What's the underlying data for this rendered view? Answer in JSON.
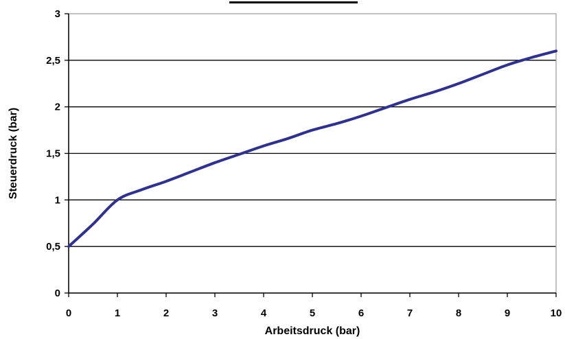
{
  "chart_data": {
    "type": "line",
    "title": "",
    "xlabel": "Arbeitsdruck (bar)",
    "ylabel": "Steuerdruck (bar)",
    "xlim": [
      0,
      10
    ],
    "ylim": [
      0,
      3
    ],
    "x_ticks": [
      "0",
      "1",
      "2",
      "3",
      "4",
      "5",
      "6",
      "7",
      "8",
      "9",
      "10"
    ],
    "y_ticks": [
      "0",
      "0,5",
      "1",
      "1,5",
      "2",
      "2,5",
      "3"
    ],
    "grid": "horizontal",
    "legend": "none",
    "series": [
      {
        "color": "#2e3192",
        "x": [
          0,
          0.5,
          1,
          1.5,
          2,
          2.5,
          3,
          3.5,
          4,
          4.5,
          5,
          5.5,
          6,
          6.5,
          7,
          7.5,
          8,
          8.5,
          9,
          9.5,
          10
        ],
        "y": [
          0.5,
          0.74,
          1.0,
          1.11,
          1.2,
          1.3,
          1.4,
          1.49,
          1.58,
          1.66,
          1.75,
          1.82,
          1.9,
          1.99,
          2.08,
          2.16,
          2.25,
          2.35,
          2.45,
          2.53,
          2.6
        ]
      }
    ]
  }
}
